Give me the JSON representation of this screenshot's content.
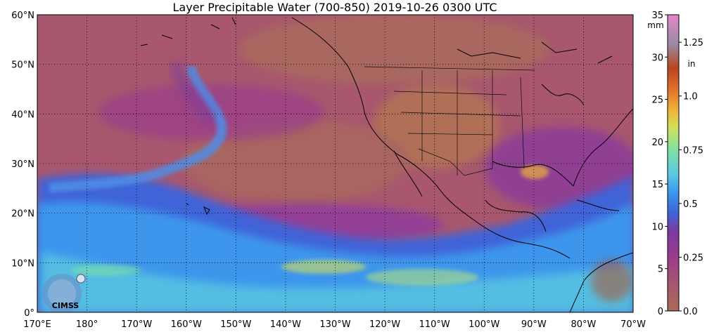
{
  "title": "Layer Precipitable Water (700-850)  2019-10-26 0300 UTC",
  "map": {
    "lat_labels": [
      "60°N",
      "50°N",
      "40°N",
      "30°N",
      "20°N",
      "10°N",
      "0°"
    ],
    "lon_labels": [
      "170°E",
      "180°",
      "170°W",
      "160°W",
      "150°W",
      "140°W",
      "130°W",
      "120°W",
      "110°W",
      "100°W",
      "90°W",
      "80°W",
      "70°W"
    ],
    "lat_range": [
      0,
      60
    ],
    "lon_range_deg_east": [
      170,
      290
    ],
    "grid": "dotted",
    "logo_text": "CIMSS"
  },
  "colorbar": {
    "mm_unit": "mm",
    "in_unit": "in",
    "mm_ticks": [
      "35",
      "30",
      "25",
      "20",
      "15",
      "10",
      "5",
      "0"
    ],
    "in_ticks": [
      "1.25",
      "1.0",
      "0.75",
      "0.5",
      "0.25",
      "0.0"
    ],
    "range_mm": [
      0,
      35
    ],
    "colors": [
      "#a86a58",
      "#a85a6e",
      "#9a3c8c",
      "#7a3aa0",
      "#3f63d8",
      "#3d96ec",
      "#5ac8e0",
      "#7de0a6",
      "#d4e05a",
      "#f0b23a",
      "#e0702a",
      "#b8461e",
      "#9a8aa2",
      "#e088c8"
    ]
  }
}
